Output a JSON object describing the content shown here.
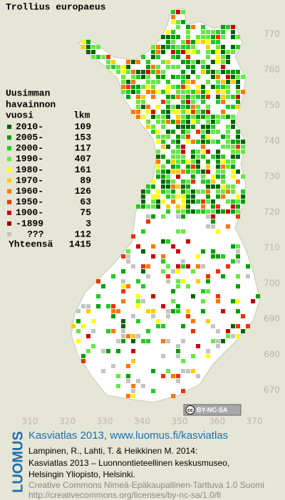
{
  "title": "Trollius europaeus",
  "legend": {
    "heading": [
      "Uusimman",
      "havainnon",
      "vuosi"
    ],
    "count_header": "lkm",
    "rows": [
      {
        "label": "2010-",
        "count": 109,
        "color": "#006400"
      },
      {
        "label": "2005-",
        "count": 153,
        "color": "#00a000"
      },
      {
        "label": "2000-",
        "count": 117,
        "color": "#22cc22"
      },
      {
        "label": "1990-",
        "count": 407,
        "color": "#66e844"
      },
      {
        "label": "1980-",
        "count": 161,
        "color": "#ffff00"
      },
      {
        "label": "1970-",
        "count": 89,
        "color": "#ffcc00"
      },
      {
        "label": "1960-",
        "count": 126,
        "color": "#ff7700"
      },
      {
        "label": "1950-",
        "count": 63,
        "color": "#ee3300"
      },
      {
        "label": "1900-",
        "count": 75,
        "color": "#cc0000"
      },
      {
        "label": "-1899",
        "count": 3,
        "color": "#880000"
      },
      {
        "label": "???",
        "count": 112,
        "color": "#c4c4c4"
      }
    ],
    "total_label": "Yhteensä",
    "total": 1415
  },
  "axes": {
    "right": [
      770,
      760,
      750,
      740,
      730,
      720,
      710,
      700,
      690,
      680,
      670
    ],
    "bottom": [
      310,
      320,
      330,
      340,
      350,
      360,
      370
    ]
  },
  "license_badge": {
    "icon": "cc",
    "text": "BY-NC-SA"
  },
  "footer": {
    "logo": "LUOMUS",
    "headline": "Kasviatlas 2013, www.luomus.fi/kasviatlas",
    "citation": [
      "Lampinen, R., Lahti, T. & Heikkinen M. 2014:",
      "Kasviatlas 2013 – Luonnontieteellinen keskusmuseo,",
      "Helsingin Yliopisto, Helsinki."
    ],
    "license": [
      "Creative Commons Nimeä-Epäkaupallinen-Tarttuva 1.0 Suomi",
      "http://creativecommons.org/licenses/by-nc-sa/1.0/fi"
    ]
  }
}
